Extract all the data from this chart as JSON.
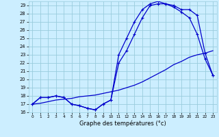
{
  "xlabel": "Graphe des températures (°c)",
  "bg_color": "#cceeff",
  "grid_color": "#99ccdd",
  "line_color": "#0000cc",
  "xlim": [
    -0.5,
    23.5
  ],
  "ylim": [
    16,
    29.5
  ],
  "xticks": [
    0,
    1,
    2,
    3,
    4,
    5,
    6,
    7,
    8,
    9,
    10,
    11,
    12,
    13,
    14,
    15,
    16,
    17,
    18,
    19,
    20,
    21,
    22,
    23
  ],
  "yticks": [
    16,
    17,
    18,
    19,
    20,
    21,
    22,
    23,
    24,
    25,
    26,
    27,
    28,
    29
  ],
  "curve1_x": [
    0,
    1,
    2,
    3,
    4,
    5,
    6,
    7,
    8,
    9,
    10,
    11,
    12,
    13,
    14,
    15,
    16,
    17,
    18,
    19,
    20,
    21,
    22,
    23
  ],
  "curve1_y": [
    17.0,
    17.8,
    17.8,
    18.0,
    17.8,
    17.0,
    16.8,
    16.5,
    16.3,
    17.0,
    17.5,
    22.0,
    23.5,
    25.5,
    27.5,
    29.0,
    29.2,
    29.2,
    29.0,
    28.5,
    28.5,
    27.8,
    23.2,
    20.5
  ],
  "curve2_x": [
    0,
    1,
    2,
    3,
    4,
    5,
    6,
    7,
    8,
    9,
    10,
    11,
    12,
    13,
    14,
    15,
    16,
    17,
    18,
    19,
    20,
    21,
    22,
    23
  ],
  "curve2_y": [
    17.0,
    17.1,
    17.3,
    17.5,
    17.6,
    17.7,
    17.9,
    18.0,
    18.1,
    18.3,
    18.5,
    18.7,
    19.0,
    19.3,
    19.7,
    20.2,
    20.7,
    21.2,
    21.8,
    22.2,
    22.7,
    23.0,
    23.2,
    23.5
  ],
  "curve3_x": [
    0,
    1,
    2,
    3,
    4,
    5,
    6,
    7,
    8,
    9,
    10,
    11,
    12,
    13,
    14,
    15,
    16,
    17,
    18,
    19,
    20,
    21,
    22,
    23
  ],
  "curve3_y": [
    17.0,
    17.8,
    17.8,
    18.0,
    17.8,
    17.0,
    16.8,
    16.5,
    16.3,
    17.0,
    17.5,
    23.0,
    25.0,
    27.0,
    28.5,
    29.2,
    29.5,
    29.2,
    28.8,
    28.2,
    27.5,
    25.5,
    22.5,
    20.5
  ]
}
